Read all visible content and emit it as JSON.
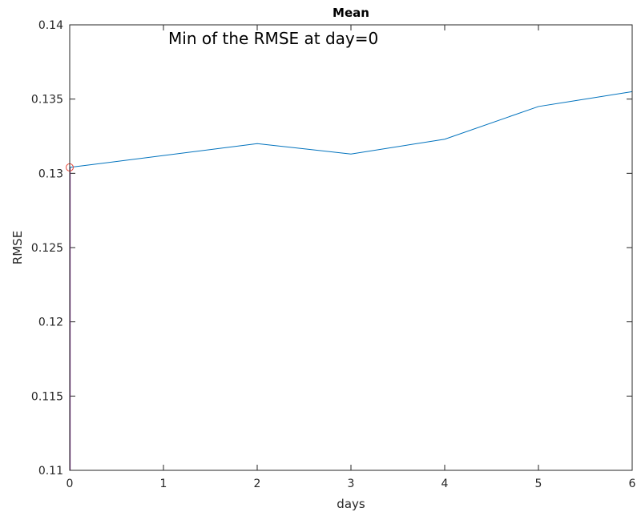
{
  "chart_data": {
    "type": "line",
    "title": "Mean",
    "xlabel": "days",
    "ylabel": "RMSE",
    "xlim": [
      0,
      6
    ],
    "ylim": [
      0.11,
      0.14
    ],
    "x_ticks": [
      0,
      1,
      2,
      3,
      4,
      5,
      6
    ],
    "x_tick_labels": [
      "0",
      "1",
      "2",
      "3",
      "4",
      "5",
      "6"
    ],
    "y_ticks": [
      0.11,
      0.115,
      0.12,
      0.125,
      0.13,
      0.135,
      0.14
    ],
    "y_tick_labels": [
      "0.11",
      "0.115",
      "0.12",
      "0.125",
      "0.13",
      "0.135",
      "0.14"
    ],
    "grid": false,
    "series": [
      {
        "color": "#0072BD",
        "x": [
          0,
          2,
          3,
          4,
          5,
          6
        ],
        "y": [
          0.1304,
          0.132,
          0.1313,
          0.1323,
          0.1345,
          0.1355
        ]
      }
    ],
    "marker": {
      "x": 0,
      "y": 0.1304,
      "shape": "circle",
      "color": "#e8483a"
    },
    "vertical_line": {
      "x": 0,
      "y_from": 0.11,
      "y_to": 0.1304,
      "color": "#7e2f8e"
    },
    "annotation": {
      "text": "Min of the RMSE at day=0",
      "x": 1.05,
      "y": 0.139
    }
  }
}
